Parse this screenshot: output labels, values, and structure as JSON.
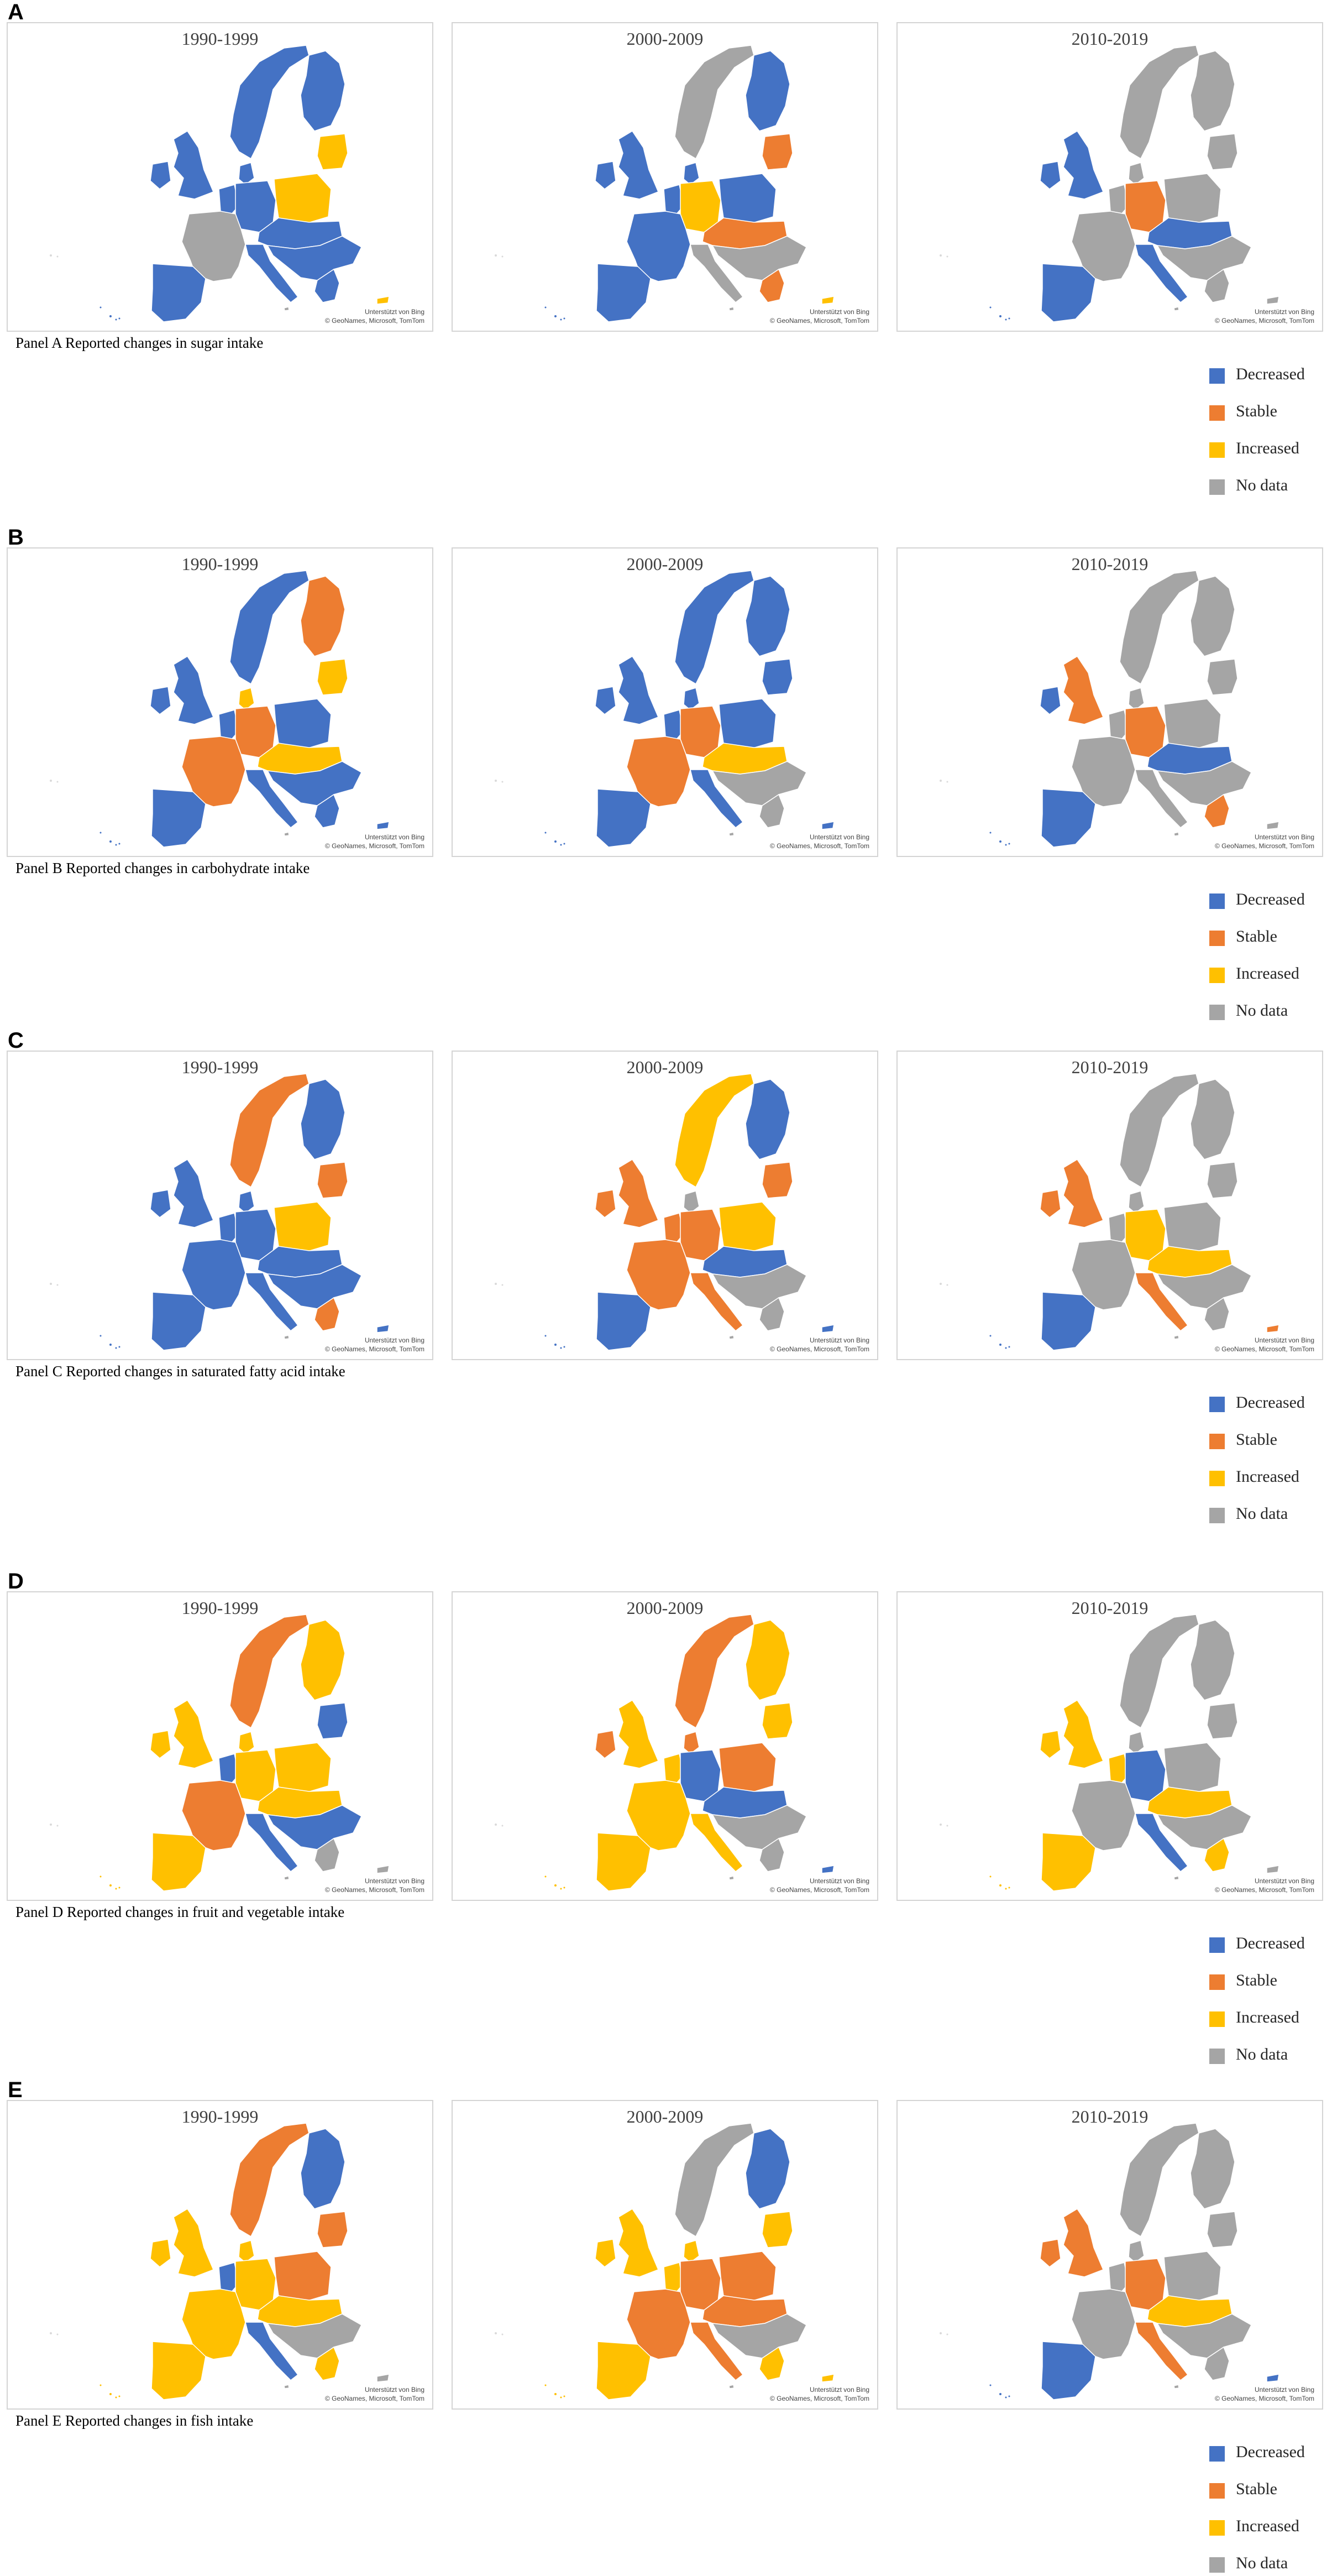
{
  "colors": {
    "decreased": "#4472C4",
    "stable": "#ED7D31",
    "increased": "#FFC000",
    "nodata": "#A5A5A5"
  },
  "legend": [
    {
      "key": "decreased",
      "label": "Decreased"
    },
    {
      "key": "stable",
      "label": "Stable"
    },
    {
      "key": "increased",
      "label": "Increased"
    },
    {
      "key": "nodata",
      "label": "No data"
    }
  ],
  "attribution_line1": "Unterstützt von Bing",
  "attribution_line2": "© GeoNames, Microsoft, TomTom",
  "periods": [
    "1990-1999",
    "2000-2009",
    "2010-2019"
  ],
  "panels": [
    {
      "letter": "A",
      "caption": "Panel A Reported changes in sugar intake",
      "maps": [
        {
          "period": "1990-1999",
          "regions": {
            "iberia": "decreased",
            "france": "nodata",
            "britain": "decreased",
            "ireland": "decreased",
            "benelux": "decreased",
            "germany": "decreased",
            "denmark": "decreased",
            "scandinavia": "decreased",
            "finland": "decreased",
            "baltics": "increased",
            "poland": "increased",
            "centraleu": "decreased",
            "italy": "decreased",
            "balkans": "decreased",
            "greece": "decreased",
            "cyprus": "increased",
            "malta": "nodata"
          }
        },
        {
          "period": "2000-2009",
          "regions": {
            "iberia": "decreased",
            "france": "decreased",
            "britain": "decreased",
            "ireland": "decreased",
            "benelux": "decreased",
            "germany": "increased",
            "denmark": "decreased",
            "scandinavia": "nodata",
            "finland": "decreased",
            "baltics": "stable",
            "poland": "decreased",
            "centraleu": "stable",
            "italy": "nodata",
            "balkans": "nodata",
            "greece": "stable",
            "cyprus": "increased",
            "malta": "nodata"
          }
        },
        {
          "period": "2010-2019",
          "regions": {
            "iberia": "decreased",
            "france": "nodata",
            "britain": "decreased",
            "ireland": "decreased",
            "benelux": "nodata",
            "germany": "stable",
            "denmark": "nodata",
            "scandinavia": "nodata",
            "finland": "nodata",
            "baltics": "nodata",
            "poland": "nodata",
            "centraleu": "decreased",
            "italy": "decreased",
            "balkans": "nodata",
            "greece": "nodata",
            "cyprus": "nodata",
            "malta": "nodata"
          }
        }
      ]
    },
    {
      "letter": "B",
      "caption": "Panel B Reported changes in carbohydrate intake",
      "maps": [
        {
          "period": "1990-1999",
          "regions": {
            "iberia": "decreased",
            "france": "stable",
            "britain": "decreased",
            "ireland": "decreased",
            "benelux": "decreased",
            "germany": "stable",
            "denmark": "increased",
            "scandinavia": "decreased",
            "finland": "stable",
            "baltics": "increased",
            "poland": "decreased",
            "centraleu": "increased",
            "italy": "decreased",
            "balkans": "decreased",
            "greece": "decreased",
            "cyprus": "decreased",
            "malta": "nodata"
          }
        },
        {
          "period": "2000-2009",
          "regions": {
            "iberia": "decreased",
            "france": "stable",
            "britain": "decreased",
            "ireland": "decreased",
            "benelux": "decreased",
            "germany": "stable",
            "denmark": "decreased",
            "scandinavia": "decreased",
            "finland": "decreased",
            "baltics": "decreased",
            "poland": "decreased",
            "centraleu": "increased",
            "italy": "decreased",
            "balkans": "nodata",
            "greece": "nodata",
            "cyprus": "decreased",
            "malta": "nodata"
          }
        },
        {
          "period": "2010-2019",
          "regions": {
            "iberia": "decreased",
            "france": "nodata",
            "britain": "stable",
            "ireland": "decreased",
            "benelux": "nodata",
            "germany": "stable",
            "denmark": "nodata",
            "scandinavia": "nodata",
            "finland": "nodata",
            "baltics": "nodata",
            "poland": "nodata",
            "centraleu": "decreased",
            "italy": "nodata",
            "balkans": "nodata",
            "greece": "stable",
            "cyprus": "nodata",
            "malta": "nodata"
          }
        }
      ]
    },
    {
      "letter": "C",
      "caption": "Panel C Reported changes in saturated fatty acid intake",
      "maps": [
        {
          "period": "1990-1999",
          "regions": {
            "iberia": "decreased",
            "france": "decreased",
            "britain": "decreased",
            "ireland": "decreased",
            "benelux": "decreased",
            "germany": "decreased",
            "denmark": "decreased",
            "scandinavia": "stable",
            "finland": "decreased",
            "baltics": "stable",
            "poland": "increased",
            "centraleu": "decreased",
            "italy": "decreased",
            "balkans": "decreased",
            "greece": "stable",
            "cyprus": "decreased",
            "malta": "nodata"
          }
        },
        {
          "period": "2000-2009",
          "regions": {
            "iberia": "decreased",
            "france": "stable",
            "britain": "stable",
            "ireland": "stable",
            "benelux": "stable",
            "germany": "stable",
            "denmark": "nodata",
            "scandinavia": "increased",
            "finland": "decreased",
            "baltics": "stable",
            "poland": "increased",
            "centraleu": "decreased",
            "italy": "stable",
            "balkans": "nodata",
            "greece": "nodata",
            "cyprus": "decreased",
            "malta": "nodata"
          }
        },
        {
          "period": "2010-2019",
          "regions": {
            "iberia": "decreased",
            "france": "nodata",
            "britain": "stable",
            "ireland": "stable",
            "benelux": "nodata",
            "germany": "increased",
            "denmark": "nodata",
            "scandinavia": "nodata",
            "finland": "nodata",
            "baltics": "nodata",
            "poland": "nodata",
            "centraleu": "increased",
            "italy": "stable",
            "balkans": "nodata",
            "greece": "nodata",
            "cyprus": "stable",
            "malta": "nodata"
          }
        }
      ]
    },
    {
      "letter": "D",
      "caption": "Panel D Reported changes in fruit and vegetable intake",
      "maps": [
        {
          "period": "1990-1999",
          "regions": {
            "iberia": "increased",
            "france": "stable",
            "britain": "increased",
            "ireland": "increased",
            "benelux": "decreased",
            "germany": "increased",
            "denmark": "increased",
            "scandinavia": "stable",
            "finland": "increased",
            "baltics": "decreased",
            "poland": "increased",
            "centraleu": "increased",
            "italy": "decreased",
            "balkans": "decreased",
            "greece": "nodata",
            "cyprus": "nodata",
            "malta": "nodata"
          }
        },
        {
          "period": "2000-2009",
          "regions": {
            "iberia": "increased",
            "france": "increased",
            "britain": "increased",
            "ireland": "stable",
            "benelux": "increased",
            "germany": "decreased",
            "denmark": "stable",
            "scandinavia": "stable",
            "finland": "increased",
            "baltics": "increased",
            "poland": "stable",
            "centraleu": "decreased",
            "italy": "increased",
            "balkans": "nodata",
            "greece": "nodata",
            "cyprus": "decreased",
            "malta": "nodata"
          }
        },
        {
          "period": "2010-2019",
          "regions": {
            "iberia": "increased",
            "france": "nodata",
            "britain": "increased",
            "ireland": "increased",
            "benelux": "increased",
            "germany": "decreased",
            "denmark": "nodata",
            "scandinavia": "nodata",
            "finland": "nodata",
            "baltics": "nodata",
            "poland": "nodata",
            "centraleu": "increased",
            "italy": "decreased",
            "balkans": "nodata",
            "greece": "increased",
            "cyprus": "nodata",
            "malta": "nodata"
          }
        }
      ]
    },
    {
      "letter": "E",
      "caption": "Panel E Reported changes in fish intake",
      "maps": [
        {
          "period": "1990-1999",
          "regions": {
            "iberia": "increased",
            "france": "increased",
            "britain": "increased",
            "ireland": "increased",
            "benelux": "decreased",
            "germany": "increased",
            "denmark": "increased",
            "scandinavia": "stable",
            "finland": "decreased",
            "baltics": "stable",
            "poland": "stable",
            "centraleu": "increased",
            "italy": "decreased",
            "balkans": "nodata",
            "greece": "increased",
            "cyprus": "nodata",
            "malta": "nodata"
          }
        },
        {
          "period": "2000-2009",
          "regions": {
            "iberia": "increased",
            "france": "stable",
            "britain": "increased",
            "ireland": "increased",
            "benelux": "increased",
            "germany": "stable",
            "denmark": "increased",
            "scandinavia": "nodata",
            "finland": "decreased",
            "baltics": "increased",
            "poland": "stable",
            "centraleu": "stable",
            "italy": "stable",
            "balkans": "nodata",
            "greece": "increased",
            "cyprus": "increased",
            "malta": "nodata"
          }
        },
        {
          "period": "2010-2019",
          "regions": {
            "iberia": "decreased",
            "france": "nodata",
            "britain": "stable",
            "ireland": "stable",
            "benelux": "nodata",
            "germany": "stable",
            "denmark": "nodata",
            "scandinavia": "nodata",
            "finland": "nodata",
            "baltics": "nodata",
            "poland": "nodata",
            "centraleu": "increased",
            "italy": "stable",
            "balkans": "nodata",
            "greece": "nodata",
            "cyprus": "decreased",
            "malta": "nodata"
          }
        }
      ]
    }
  ]
}
